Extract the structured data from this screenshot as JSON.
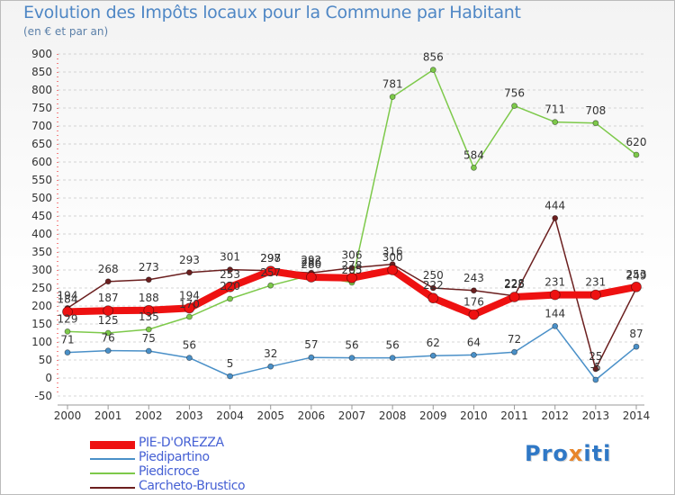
{
  "header": {
    "title": "Evolution des Impôts locaux pour la Commune par Habitant",
    "subtitle": "(en € et par an)"
  },
  "chart_data": {
    "type": "line",
    "title": "Evolution des Impôts locaux pour la Commune par Habitant",
    "subtitle": "(en € et par an)",
    "xlabel": "",
    "ylabel": "",
    "ylim": [
      -50,
      900
    ],
    "yticks": [
      -50,
      0,
      50,
      100,
      150,
      200,
      250,
      300,
      350,
      400,
      450,
      500,
      550,
      600,
      650,
      700,
      750,
      800,
      850,
      900
    ],
    "categories": [
      "2000",
      "2001",
      "2002",
      "2003",
      "2004",
      "2005",
      "2006",
      "2007",
      "2008",
      "2009",
      "2010",
      "2011",
      "2012",
      "2013",
      "2014"
    ],
    "grid": "horizontal dashed",
    "series": [
      {
        "name": "Carcheto-Brustico",
        "color": "#6b1f1f",
        "values": [
          194,
          268,
          273,
          293,
          301,
          298,
          292,
          306,
          316,
          250,
          243,
          228,
          444,
          25,
          249
        ]
      },
      {
        "name": "Piedicroce",
        "color": "#7dc94a",
        "values": [
          129,
          125,
          135,
          170,
          220,
          257,
          286,
          265,
          781,
          856,
          584,
          756,
          711,
          708,
          620
        ]
      },
      {
        "name": "Piedipartino",
        "color": "#4a90c8",
        "values": [
          71,
          76,
          75,
          56,
          5,
          32,
          57,
          56,
          56,
          62,
          64,
          72,
          144,
          -5,
          87
        ]
      },
      {
        "name": "PIE-D'OREZZA",
        "color": "#ee1111",
        "values": [
          184,
          187,
          188,
          194,
          253,
          297,
          280,
          278,
          300,
          222,
          176,
          225,
          231,
          231,
          253
        ]
      }
    ],
    "legend_order": [
      "PIE-D'OREZZA",
      "Piedipartino",
      "Piedicroce",
      "Carcheto-Brustico"
    ],
    "legend_position": "bottom-left"
  },
  "logo": {
    "text": "Proxiti"
  }
}
